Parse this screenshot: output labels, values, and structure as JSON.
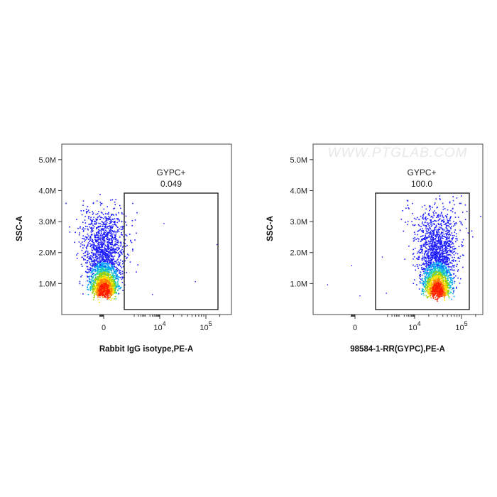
{
  "watermark": "WWW.PTGLAB.COM",
  "colors": {
    "density": [
      "#1c1cff",
      "#00a0ff",
      "#20d0b0",
      "#9ad000",
      "#ffe000",
      "#ff7a00",
      "#ff1a00"
    ],
    "gate": "#111111",
    "frame": "#444444"
  },
  "chart_data": [
    {
      "type": "scatter",
      "subtype": "flow-cytometry-density",
      "xlabel": "Rabbit IgG isotype,PE-A",
      "ylabel": "SSC-A",
      "y_ticks": [
        "1.0M",
        "2.0M",
        "3.0M",
        "4.0M",
        "5.0M"
      ],
      "y_tick_values": [
        1000000,
        2000000,
        3000000,
        4000000,
        5000000
      ],
      "ylim": [
        0,
        5500000
      ],
      "x_scale": "biexponential",
      "x_ticks": [
        {
          "base": "0",
          "exp": ""
        },
        {
          "base": "10",
          "exp": "4"
        },
        {
          "base": "10",
          "exp": "5"
        }
      ],
      "x_tick_values": [
        0,
        10000,
        100000
      ],
      "gate": {
        "name": "GYPC+",
        "percent": "0.049",
        "x_range": [
          1000,
          200000
        ],
        "y_range": [
          0,
          4000000
        ]
      },
      "population": {
        "x_center": 0,
        "y_center": 750000,
        "y_max": 3800000
      }
    },
    {
      "type": "scatter",
      "subtype": "flow-cytometry-density",
      "xlabel": "98584-1-RR(GYPC),PE-A",
      "ylabel": "SSC-A",
      "y_ticks": [
        "1.0M",
        "2.0M",
        "3.0M",
        "4.0M",
        "5.0M"
      ],
      "y_tick_values": [
        1000000,
        2000000,
        3000000,
        4000000,
        5000000
      ],
      "ylim": [
        0,
        5500000
      ],
      "x_scale": "biexponential",
      "x_ticks": [
        {
          "base": "0",
          "exp": ""
        },
        {
          "base": "10",
          "exp": "4"
        },
        {
          "base": "10",
          "exp": "5"
        }
      ],
      "x_tick_values": [
        0,
        10000,
        100000
      ],
      "gate": {
        "name": "GYPC+",
        "percent": "100.0",
        "x_range": [
          1000,
          200000
        ],
        "y_range": [
          0,
          4000000
        ]
      },
      "population": {
        "x_center": 30000,
        "y_center": 750000,
        "y_max": 3800000
      }
    }
  ]
}
